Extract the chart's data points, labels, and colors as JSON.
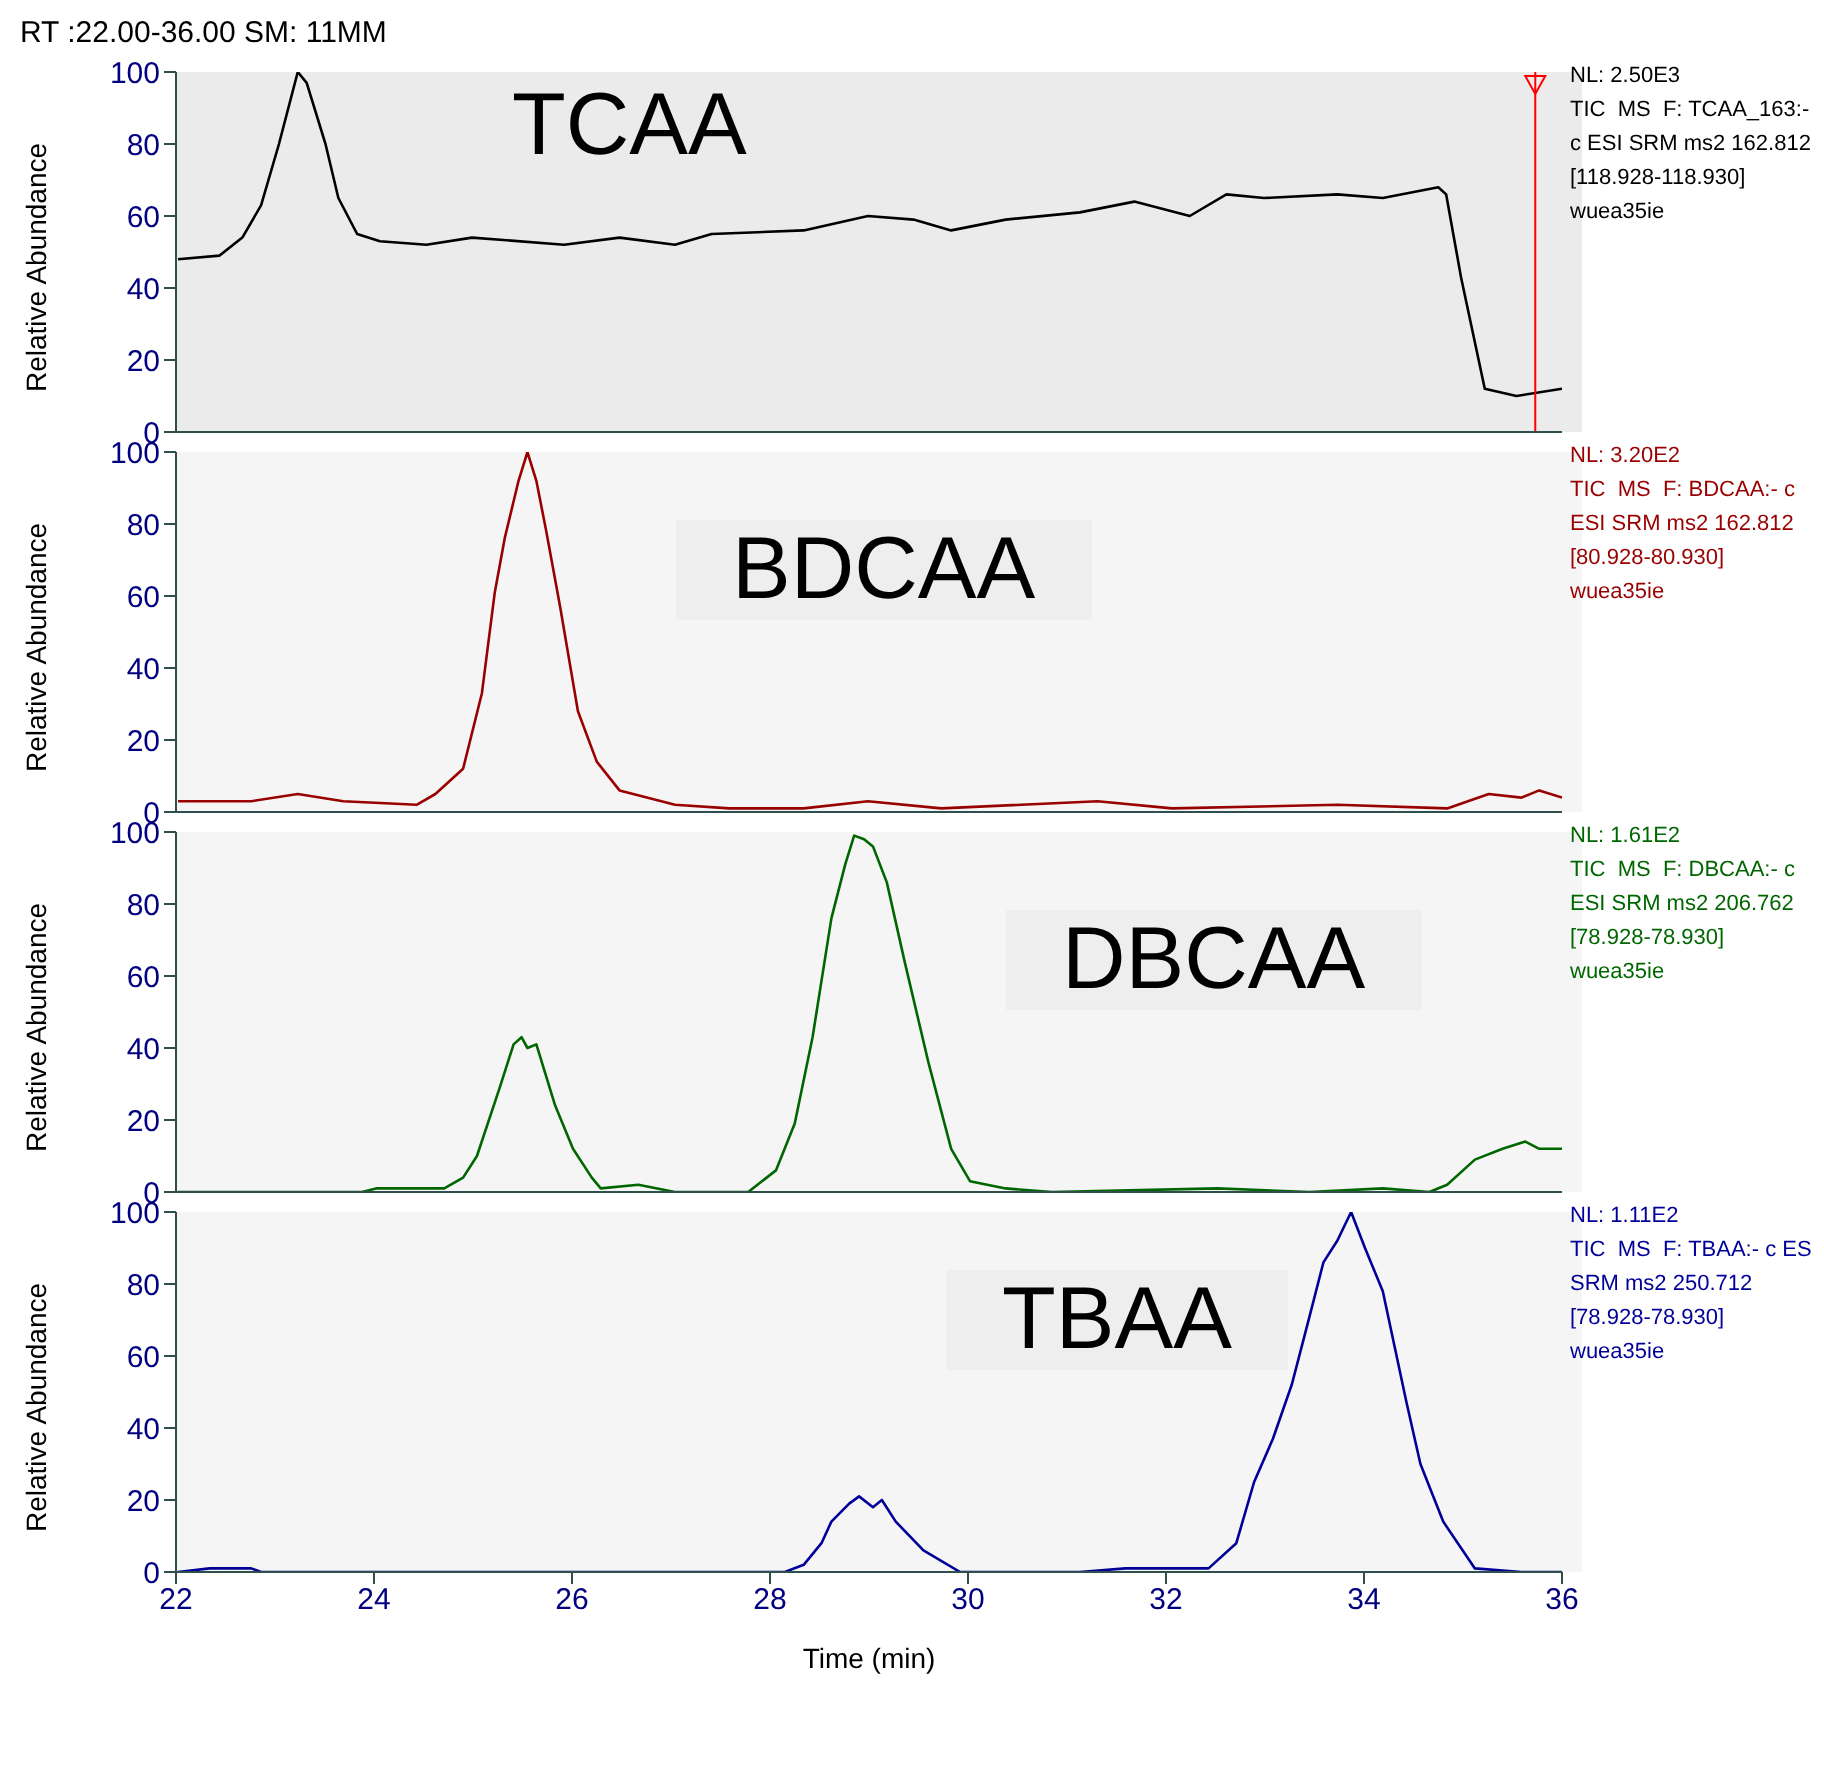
{
  "chart_data": [
    {
      "type": "line",
      "title": "RT :22.00-36.00 SM: 11MM",
      "ylabel": "Relative Abundance",
      "xlim": [
        22,
        36
      ],
      "xticks": [
        22,
        24,
        26,
        28,
        30,
        32,
        34,
        36
      ],
      "ylim": [
        0,
        100
      ],
      "yticks": [
        0,
        20,
        40,
        60,
        80,
        100
      ],
      "tick_labels": "y",
      "annotations": [
        "TCAA",
        "NL: 2.50E3",
        "TIC  MS  F: TCAA_163:-",
        "c ESI SRM ms2 162.812",
        "[118.928-118.930]",
        "wuea35ie"
      ],
      "ref_lines": [
        {
          "axis": "x",
          "value": 35.73,
          "color": "#ff0000"
        }
      ],
      "series": [
        {
          "color": "#000000",
          "x": [
            22.02,
            22.44,
            22.67,
            22.86,
            23.04,
            23.23,
            23.32,
            23.51,
            23.64,
            23.83,
            24.06,
            24.53,
            24.99,
            25.92,
            26.48,
            27.04,
            27.41,
            28.34,
            28.99,
            29.45,
            29.83,
            30.38,
            31.13,
            31.68,
            32.24,
            32.61,
            32.99,
            33.73,
            34.19,
            34.75,
            34.83,
            34.98,
            35.22,
            35.54,
            36.0
          ],
          "values": [
            48,
            49,
            54,
            63,
            80,
            100,
            97,
            80,
            65,
            55,
            53,
            52,
            54,
            52,
            54,
            52,
            55,
            56,
            60,
            59,
            56,
            59,
            61,
            64,
            60,
            66,
            65,
            66,
            65,
            68,
            66,
            43,
            12,
            10,
            12
          ]
        }
      ]
    },
    {
      "type": "line",
      "ylabel": "Relative Abundance",
      "xlim": [
        22,
        36
      ],
      "xticks": [
        22,
        24,
        26,
        28,
        30,
        32,
        34,
        36
      ],
      "ylim": [
        0,
        100
      ],
      "yticks": [
        0,
        20,
        40,
        60,
        80,
        100
      ],
      "tick_labels": "y",
      "annotations": [
        "BDCAA",
        "NL: 3.20E2",
        "TIC  MS  F: BDCAA:- c",
        "ESI SRM ms2 162.812",
        "[80.928-80.930]",
        "wuea35ie"
      ],
      "series": [
        {
          "color": "#990000",
          "x": [
            22.02,
            22.76,
            23.23,
            23.69,
            24.43,
            24.62,
            24.9,
            25.09,
            25.22,
            25.32,
            25.46,
            25.55,
            25.64,
            25.74,
            25.88,
            26.06,
            26.25,
            26.48,
            27.04,
            27.59,
            28.34,
            28.99,
            29.73,
            31.31,
            32.06,
            33.73,
            34.84,
            35.26,
            35.59,
            35.77,
            36.0
          ],
          "values": [
            3,
            3,
            5,
            3,
            2,
            5,
            12,
            33,
            61,
            76,
            92,
            100,
            92,
            78,
            57,
            28,
            14,
            6,
            2,
            1,
            1,
            3,
            1,
            3,
            1,
            2,
            1,
            5,
            4,
            6,
            4
          ]
        }
      ]
    },
    {
      "type": "line",
      "ylabel": "Relative Abundance",
      "xlim": [
        22,
        36
      ],
      "xticks": [
        22,
        24,
        26,
        28,
        30,
        32,
        34,
        36
      ],
      "ylim": [
        0,
        100
      ],
      "yticks": [
        0,
        20,
        40,
        60,
        80,
        100
      ],
      "tick_labels": "y",
      "annotations": [
        "DBCAA",
        "NL: 1.61E2",
        "TIC  MS  F: DBCAA:- c",
        "ESI SRM ms2 206.762",
        "[78.928-78.930]",
        "wuea35ie"
      ],
      "series": [
        {
          "color": "#006600",
          "x": [
            22.02,
            23.88,
            24.02,
            24.53,
            24.71,
            24.9,
            25.04,
            25.27,
            25.41,
            25.49,
            25.55,
            25.64,
            25.83,
            26.01,
            26.2,
            26.29,
            26.67,
            27.04,
            27.78,
            28.06,
            28.25,
            28.43,
            28.62,
            28.76,
            28.85,
            28.95,
            29.04,
            29.18,
            29.36,
            29.6,
            29.83,
            30.02,
            30.38,
            30.85,
            32.52,
            33.45,
            34.19,
            34.66,
            34.84,
            35.12,
            35.4,
            35.63,
            35.77,
            36.0
          ],
          "values": [
            0,
            0,
            1,
            1,
            1,
            4,
            10,
            29,
            41,
            43,
            40,
            41,
            24,
            12,
            4,
            1,
            2,
            0,
            0,
            6,
            19,
            43,
            76,
            91,
            99,
            98,
            96,
            86,
            64,
            36,
            12,
            3,
            1,
            0,
            1,
            0,
            1,
            0,
            2,
            9,
            12,
            14,
            12,
            12
          ]
        }
      ]
    },
    {
      "type": "line",
      "xlabel": "Time (min)",
      "ylabel": "Relative Abundance",
      "xlim": [
        22,
        36
      ],
      "xticks": [
        22,
        24,
        26,
        28,
        30,
        32,
        34,
        36
      ],
      "ylim": [
        0,
        100
      ],
      "yticks": [
        0,
        20,
        40,
        60,
        80,
        100
      ],
      "annotations": [
        "TBAA",
        "NL: 1.11E2",
        "TIC  MS  F: TBAA:- c ES",
        "SRM ms2 250.712",
        "[78.928-78.930]",
        "wuea35ie"
      ],
      "series": [
        {
          "color": "#000099",
          "x": [
            22.02,
            22.34,
            22.76,
            22.86,
            26.01,
            26.48,
            28.15,
            28.34,
            28.52,
            28.62,
            28.8,
            28.9,
            29.04,
            29.13,
            29.27,
            29.55,
            29.92,
            31.13,
            31.59,
            32.43,
            32.71,
            32.89,
            33.08,
            33.27,
            33.45,
            33.59,
            33.73,
            33.87,
            34.01,
            34.19,
            34.43,
            34.57,
            34.8,
            35.12,
            35.59,
            36.0
          ],
          "values": [
            0,
            1,
            1,
            0,
            0,
            0,
            0,
            2,
            8,
            14,
            19,
            21,
            18,
            20,
            14,
            6,
            0,
            0,
            1,
            1,
            8,
            25,
            37,
            52,
            71,
            86,
            92,
            100,
            90,
            78,
            47,
            30,
            14,
            1,
            0,
            0
          ]
        }
      ]
    }
  ]
}
